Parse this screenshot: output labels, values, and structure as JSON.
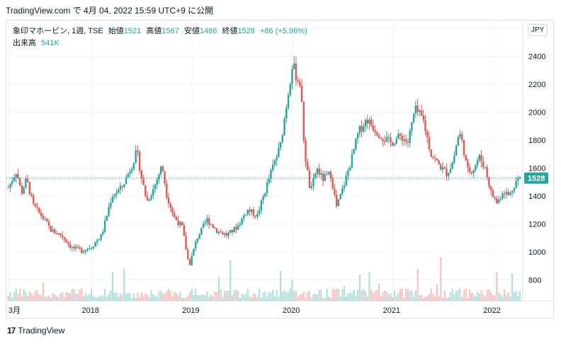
{
  "header": {
    "text": "TradingView.com で 4月 04, 2022 15:59 UTC+9 に公開"
  },
  "legend": {
    "symbol": "象印マホービン, 1週, TSE",
    "open_label": "始値",
    "open": "1521",
    "high_label": "高値",
    "high": "1567",
    "low_label": "安値",
    "low": "1486",
    "close_label": "終値",
    "close": "1528",
    "change": "+86 (+5.96%)",
    "volume_label": "出来高",
    "volume": "541K"
  },
  "currency": "JPY",
  "footer": {
    "brand": "TradingView"
  },
  "colors": {
    "up": "#26a69a",
    "down": "#ef5350",
    "grid": "#f0f3fa"
  },
  "chart_data": {
    "type": "candlestick",
    "interval": "1週",
    "title": "",
    "ylim": [
      650,
      2600
    ],
    "y_ticks": [
      800,
      1000,
      1200,
      1400,
      1600,
      1800,
      2000,
      2200,
      2400,
      2600
    ],
    "x_tick_labels": [
      "3月",
      "2018",
      "2019",
      "2020",
      "2021",
      "2022"
    ],
    "x_tick_positions_year": [
      2017.17,
      2018.0,
      2019.0,
      2020.0,
      2021.0,
      2022.0
    ],
    "x_range_year": [
      2017.15,
      2022.28
    ],
    "last_price": 1528,
    "last_price_label": "1528",
    "series": [
      {
        "t": 2017.17,
        "v": 1460
      },
      {
        "t": 2017.25,
        "v": 1580
      },
      {
        "t": 2017.3,
        "v": 1420
      },
      {
        "t": 2017.35,
        "v": 1520
      },
      {
        "t": 2017.42,
        "v": 1330
      },
      {
        "t": 2017.5,
        "v": 1260
      },
      {
        "t": 2017.6,
        "v": 1150
      },
      {
        "t": 2017.7,
        "v": 1120
      },
      {
        "t": 2017.8,
        "v": 1030
      },
      {
        "t": 2017.9,
        "v": 1010
      },
      {
        "t": 2018.0,
        "v": 1040
      },
      {
        "t": 2018.1,
        "v": 1120
      },
      {
        "t": 2018.2,
        "v": 1400
      },
      {
        "t": 2018.3,
        "v": 1460
      },
      {
        "t": 2018.4,
        "v": 1620
      },
      {
        "t": 2018.45,
        "v": 1720
      },
      {
        "t": 2018.5,
        "v": 1520
      },
      {
        "t": 2018.55,
        "v": 1360
      },
      {
        "t": 2018.62,
        "v": 1460
      },
      {
        "t": 2018.7,
        "v": 1620
      },
      {
        "t": 2018.75,
        "v": 1400
      },
      {
        "t": 2018.82,
        "v": 1250
      },
      {
        "t": 2018.9,
        "v": 1180
      },
      {
        "t": 2018.97,
        "v": 900
      },
      {
        "t": 2019.05,
        "v": 1100
      },
      {
        "t": 2019.15,
        "v": 1230
      },
      {
        "t": 2019.25,
        "v": 1150
      },
      {
        "t": 2019.35,
        "v": 1120
      },
      {
        "t": 2019.45,
        "v": 1180
      },
      {
        "t": 2019.55,
        "v": 1300
      },
      {
        "t": 2019.65,
        "v": 1260
      },
      {
        "t": 2019.72,
        "v": 1420
      },
      {
        "t": 2019.8,
        "v": 1600
      },
      {
        "t": 2019.88,
        "v": 1760
      },
      {
        "t": 2019.95,
        "v": 2100
      },
      {
        "t": 2020.0,
        "v": 2350
      },
      {
        "t": 2020.04,
        "v": 2250
      },
      {
        "t": 2020.08,
        "v": 2200
      },
      {
        "t": 2020.12,
        "v": 1720
      },
      {
        "t": 2020.18,
        "v": 1420
      },
      {
        "t": 2020.24,
        "v": 1600
      },
      {
        "t": 2020.3,
        "v": 1520
      },
      {
        "t": 2020.38,
        "v": 1560
      },
      {
        "t": 2020.44,
        "v": 1320
      },
      {
        "t": 2020.5,
        "v": 1450
      },
      {
        "t": 2020.58,
        "v": 1640
      },
      {
        "t": 2020.66,
        "v": 1860
      },
      {
        "t": 2020.74,
        "v": 1950
      },
      {
        "t": 2020.82,
        "v": 1880
      },
      {
        "t": 2020.9,
        "v": 1820
      },
      {
        "t": 2020.98,
        "v": 1780
      },
      {
        "t": 2021.08,
        "v": 1830
      },
      {
        "t": 2021.15,
        "v": 1780
      },
      {
        "t": 2021.22,
        "v": 2020
      },
      {
        "t": 2021.3,
        "v": 1950
      },
      {
        "t": 2021.38,
        "v": 1700
      },
      {
        "t": 2021.46,
        "v": 1620
      },
      {
        "t": 2021.54,
        "v": 1560
      },
      {
        "t": 2021.6,
        "v": 1650
      },
      {
        "t": 2021.66,
        "v": 1860
      },
      {
        "t": 2021.7,
        "v": 1760
      },
      {
        "t": 2021.74,
        "v": 1580
      },
      {
        "t": 2021.8,
        "v": 1590
      },
      {
        "t": 2021.86,
        "v": 1680
      },
      {
        "t": 2021.92,
        "v": 1600
      },
      {
        "t": 2021.98,
        "v": 1420
      },
      {
        "t": 2022.04,
        "v": 1350
      },
      {
        "t": 2022.1,
        "v": 1440
      },
      {
        "t": 2022.16,
        "v": 1400
      },
      {
        "t": 2022.22,
        "v": 1500
      },
      {
        "t": 2022.26,
        "v": 1528
      }
    ]
  }
}
